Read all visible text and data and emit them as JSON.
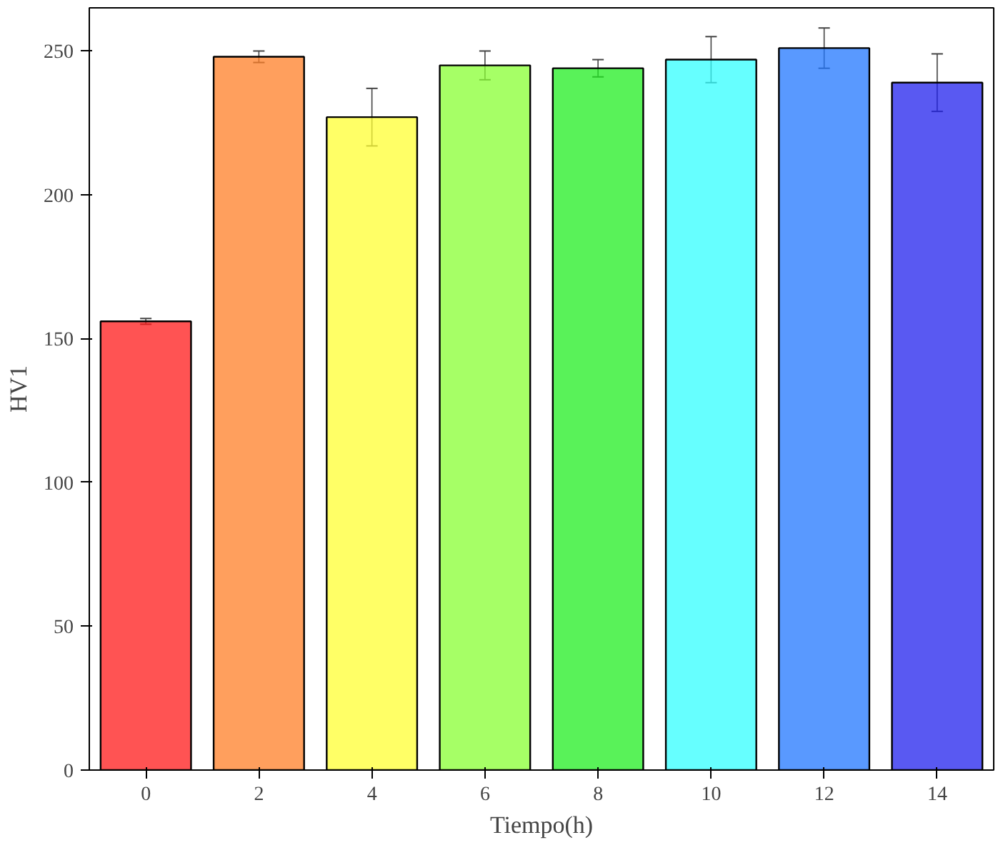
{
  "chart_data": {
    "type": "bar",
    "xlabel": "Tiempo(h)",
    "ylabel": "HV1",
    "x": [
      0,
      2,
      4,
      6,
      8,
      10,
      12,
      14
    ],
    "values": [
      156,
      248,
      227,
      245,
      244,
      247,
      251,
      239
    ],
    "errors": [
      1,
      2,
      10,
      5,
      3,
      8,
      7,
      10
    ],
    "colors": [
      "#ff1a1a",
      "#ff7f27",
      "#ffff33",
      "#88ff33",
      "#22ee22",
      "#33ffff",
      "#2277ff",
      "#2222ee"
    ],
    "xlim": [
      -1,
      15
    ],
    "xticks": [
      0,
      2,
      4,
      6,
      8,
      10,
      12,
      14
    ],
    "ylim": [
      0,
      265
    ],
    "yticks": [
      0,
      50,
      100,
      150,
      200,
      250
    ],
    "grid": false
  }
}
